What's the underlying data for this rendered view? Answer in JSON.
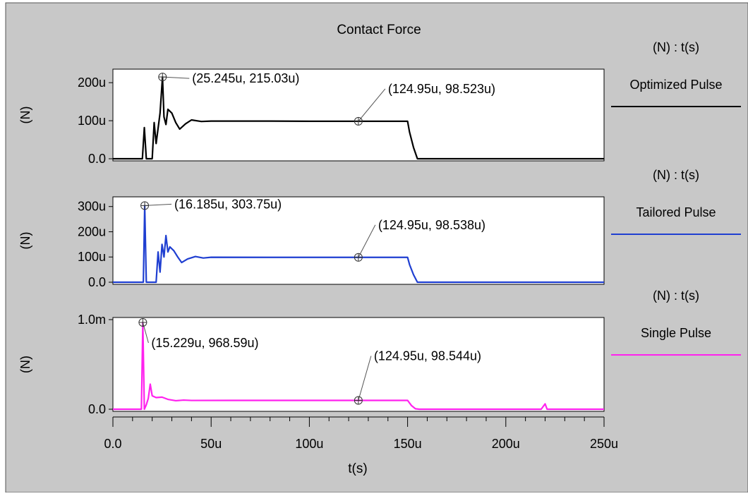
{
  "chart_data": {
    "type": "line",
    "title": "Contact Force",
    "xlabel": "t(s)",
    "xlim": [
      0,
      250
    ],
    "x_unit_suffix": "u",
    "x_ticks": [
      {
        "v": 0,
        "label": "0.0"
      },
      {
        "v": 50,
        "label": "50u"
      },
      {
        "v": 100,
        "label": "100u"
      },
      {
        "v": 150,
        "label": "150u"
      },
      {
        "v": 200,
        "label": "200u"
      },
      {
        "v": 250,
        "label": "250u"
      }
    ],
    "panels": [
      {
        "series_name": "Optimized Pulse",
        "legend_unit": "(N) : t(s)",
        "ylabel": "(N)",
        "color": "#000000",
        "ylim": [
          0,
          230
        ],
        "y_ticks": [
          {
            "v": 0,
            "label": "0.0"
          },
          {
            "v": 100,
            "label": "100u"
          },
          {
            "v": 200,
            "label": "200u"
          }
        ],
        "points": [
          [
            0,
            0
          ],
          [
            15,
            0
          ],
          [
            16,
            82
          ],
          [
            17,
            0
          ],
          [
            20,
            0
          ],
          [
            21,
            95
          ],
          [
            22,
            40
          ],
          [
            23,
            80
          ],
          [
            24,
            120
          ],
          [
            25.245,
            215.03
          ],
          [
            26,
            110
          ],
          [
            27,
            90
          ],
          [
            28,
            130
          ],
          [
            30,
            120
          ],
          [
            32,
            95
          ],
          [
            34,
            78
          ],
          [
            37,
            92
          ],
          [
            40,
            102
          ],
          [
            45,
            98
          ],
          [
            50,
            99
          ],
          [
            80,
            99
          ],
          [
            100,
            98.5
          ],
          [
            124.95,
            98.523
          ],
          [
            150,
            98.5
          ],
          [
            151,
            70
          ],
          [
            153,
            30
          ],
          [
            155,
            0
          ],
          [
            250,
            0
          ]
        ],
        "markers": [
          {
            "x": 25.245,
            "y": 215.03,
            "label": "(25.245u, 215.03u)"
          },
          {
            "x": 124.95,
            "y": 98.523,
            "label": "(124.95u, 98.523u)"
          }
        ]
      },
      {
        "series_name": "Tailored Pulse",
        "legend_unit": "(N) : t(s)",
        "ylabel": "(N)",
        "color": "#1f3fd1",
        "ylim": [
          0,
          330
        ],
        "y_ticks": [
          {
            "v": 0,
            "label": "0.0"
          },
          {
            "v": 100,
            "label": "100u"
          },
          {
            "v": 200,
            "label": "200u"
          },
          {
            "v": 300,
            "label": "300u"
          }
        ],
        "points": [
          [
            0,
            0
          ],
          [
            15.5,
            0
          ],
          [
            16.185,
            303.75
          ],
          [
            17,
            0
          ],
          [
            22,
            0
          ],
          [
            23,
            120
          ],
          [
            24,
            40
          ],
          [
            25,
            150
          ],
          [
            26,
            100
          ],
          [
            27,
            185
          ],
          [
            28,
            120
          ],
          [
            29,
            140
          ],
          [
            31,
            125
          ],
          [
            33,
            100
          ],
          [
            35,
            78
          ],
          [
            38,
            92
          ],
          [
            42,
            102
          ],
          [
            46,
            96
          ],
          [
            50,
            99
          ],
          [
            80,
            98.5
          ],
          [
            124.95,
            98.538
          ],
          [
            150,
            98.5
          ],
          [
            151,
            70
          ],
          [
            153,
            30
          ],
          [
            155,
            0
          ],
          [
            250,
            0
          ]
        ],
        "markers": [
          {
            "x": 16.185,
            "y": 303.75,
            "label": "(16.185u, 303.75u)"
          },
          {
            "x": 124.95,
            "y": 98.538,
            "label": "(124.95u, 98.538u)"
          }
        ]
      },
      {
        "series_name": "Single Pulse",
        "legend_unit": "(N) : t(s)",
        "ylabel": "(N)",
        "color": "#ff22ee",
        "ylim": [
          0,
          1000
        ],
        "y_ticks": [
          {
            "v": 0,
            "label": "0.0"
          },
          {
            "v": 1000,
            "label": "1.0m"
          }
        ],
        "points": [
          [
            0,
            0
          ],
          [
            14.5,
            0
          ],
          [
            15.229,
            968.59
          ],
          [
            16,
            0
          ],
          [
            17,
            50
          ],
          [
            18,
            120
          ],
          [
            19,
            280
          ],
          [
            20,
            150
          ],
          [
            22,
            130
          ],
          [
            25,
            135
          ],
          [
            28,
            110
          ],
          [
            32,
            95
          ],
          [
            36,
            102
          ],
          [
            40,
            98
          ],
          [
            60,
            98.5
          ],
          [
            124.95,
            98.544
          ],
          [
            150,
            98.5
          ],
          [
            152,
            40
          ],
          [
            154,
            5
          ],
          [
            156,
            0
          ],
          [
            218,
            0
          ],
          [
            220,
            60
          ],
          [
            221,
            0
          ],
          [
            250,
            0
          ]
        ],
        "markers": [
          {
            "x": 15.229,
            "y": 968.59,
            "label": "(15.229u, 968.59u)"
          },
          {
            "x": 124.95,
            "y": 98.544,
            "label": "(124.95u, 98.544u)"
          }
        ]
      }
    ]
  }
}
